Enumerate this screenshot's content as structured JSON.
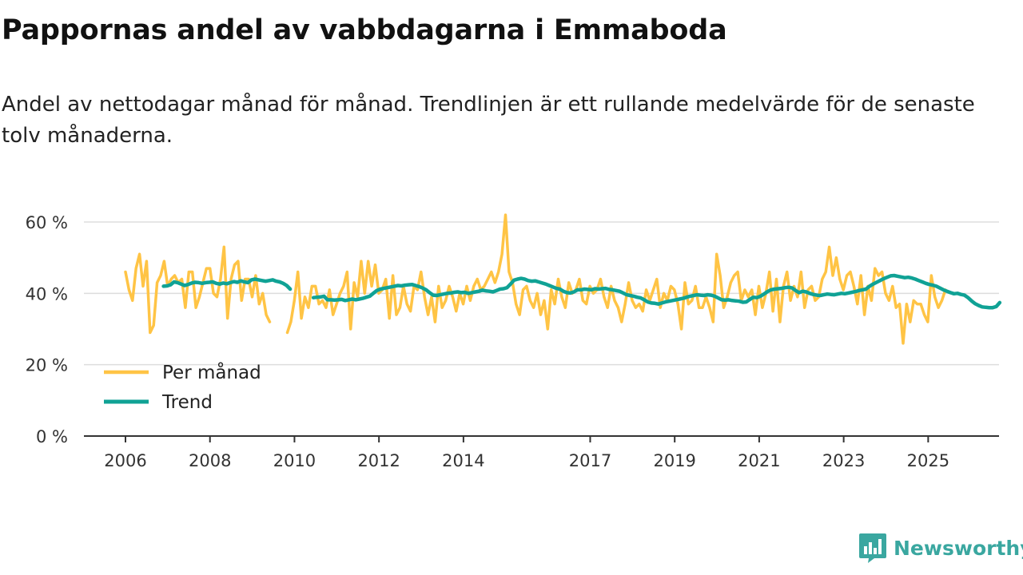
{
  "title": "Pappornas andel av vabbdagarna i Emmaboda",
  "subtitle": "Andel av nettodagar månad för månad. Trendlinjen är ett rullande medelvärde för de senaste tolv månaderna.",
  "brand": {
    "name": "Newsworthy",
    "color": "#3aa7a0"
  },
  "colors": {
    "monthly": "#ffc445",
    "trend": "#10a295",
    "grid": "#dddddd",
    "axis": "#333333"
  },
  "chart_data": {
    "type": "line",
    "title": "Pappornas andel av vabbdagarna i Emmaboda",
    "xlabel": "",
    "ylabel": "",
    "ylim": [
      0,
      60
    ],
    "xlim": [
      2006,
      2025.75
    ],
    "yticks": [
      0,
      20,
      40,
      60
    ],
    "ytick_labels": [
      "0 %",
      "20 %",
      "40 %",
      "60 %"
    ],
    "xticks": [
      2006,
      2008,
      2010,
      2012,
      2014,
      2017,
      2019,
      2021,
      2023,
      2025
    ],
    "xtick_labels": [
      "2006",
      "2008",
      "2010",
      "2012",
      "2014",
      "2017",
      "2019",
      "2021",
      "2023",
      "2025"
    ],
    "grid": true,
    "legend_position": "bottom-left",
    "series": [
      {
        "name": "Per månad",
        "color": "#ffc445",
        "segments": [
          {
            "start": 2006.0,
            "step": 0.0833,
            "values": [
              46,
              41,
              38,
              47,
              51,
              42,
              49,
              29,
              31,
              43,
              45,
              49,
              42,
              44,
              45,
              43,
              44,
              36,
              46,
              46,
              36,
              39,
              43,
              47,
              47,
              40,
              39,
              44,
              53,
              33,
              44,
              48,
              49,
              38,
              44,
              44,
              39,
              45,
              37,
              40,
              34,
              32
            ]
          },
          {
            "start": 2009.83,
            "step": 0.0833,
            "values": [
              29,
              32,
              38,
              46,
              33,
              39,
              36,
              42,
              42,
              37,
              38,
              36,
              41,
              34,
              37,
              40,
              42,
              46,
              30,
              43,
              39,
              49,
              40,
              49,
              42,
              48,
              40,
              41,
              44,
              33,
              45,
              34,
              36,
              42,
              37,
              35,
              42,
              41,
              46,
              39,
              34,
              39,
              32,
              42,
              36,
              38,
              42,
              39,
              35,
              40,
              37,
              42,
              38,
              42,
              44,
              41,
              42,
              44,
              46,
              43,
              46,
              51,
              62,
              46,
              43,
              37,
              34,
              41,
              42,
              38,
              36,
              40,
              34,
              38,
              30,
              41,
              37,
              44,
              39,
              36,
              43,
              40,
              41,
              44,
              38,
              37,
              42,
              40,
              41,
              44,
              39,
              36,
              42,
              38,
              36,
              32,
              37,
              43,
              38,
              36,
              37,
              35,
              41,
              38,
              41,
              44,
              36,
              40,
              38,
              42,
              41,
              37,
              30,
              43,
              37,
              38,
              42,
              36,
              36,
              39,
              36,
              32,
              51,
              45,
              36,
              39,
              43,
              45,
              46,
              38,
              41,
              39,
              41,
              34,
              42,
              36,
              40,
              46,
              35,
              44,
              32,
              42,
              46,
              38,
              42,
              39,
              46,
              36,
              41,
              42,
              38,
              39,
              44,
              46,
              53,
              45,
              50,
              44,
              41,
              45,
              46,
              42,
              37,
              45,
              34,
              42,
              38,
              47,
              45,
              46,
              40,
              38,
              42,
              36,
              37,
              26,
              37,
              32,
              38,
              37,
              37,
              34,
              32,
              45,
              39,
              36,
              38,
              41
            ]
          }
        ]
      },
      {
        "name": "Trend",
        "color": "#10a295",
        "segments": [
          {
            "start": 2006.9,
            "step": 0.0833,
            "values": [
              42.0,
              42.1,
              42.4,
              43.2,
              43.0,
              42.6,
              42.2,
              42.5,
              42.9,
              43.1,
              43.0,
              42.8,
              43.0,
              43.1,
              43.2,
              42.8,
              42.6,
              42.9,
              42.7,
              43.0,
              43.3,
              43.1,
              43.5,
              43.2,
              43.0,
              43.8,
              44.0,
              43.8,
              43.6,
              43.4,
              43.6,
              43.8,
              43.4,
              43.2,
              42.8,
              42.2,
              41.2
            ]
          },
          {
            "start": 2010.45,
            "step": 0.0833,
            "values": [
              38.8,
              38.9,
              39.0,
              39.2,
              38.2,
              38.2,
              38.1,
              38.2,
              38.3,
              38.0,
              38.2,
              38.4,
              38.2,
              38.4,
              38.6,
              38.9,
              39.2,
              40.0,
              40.8,
              41.2,
              41.4,
              41.6,
              41.8,
              42.0,
              42.2,
              42.1,
              42.3,
              42.4,
              42.5,
              42.2,
              41.9,
              41.5,
              41.0,
              40.2,
              39.5,
              39.4,
              39.6,
              39.8,
              40.0,
              40.1,
              40.3,
              40.4,
              40.2,
              40.3,
              40.0,
              40.2,
              40.4,
              40.6,
              40.9,
              40.7,
              40.6,
              40.4,
              40.8,
              41.2,
              41.3,
              41.6,
              42.6,
              43.7,
              44.0,
              44.2,
              44.0,
              43.6,
              43.4,
              43.5,
              43.2,
              42.9,
              42.6,
              42.2,
              41.8,
              41.4,
              41.2,
              40.6,
              40.2,
              40.1,
              40.4,
              41.0,
              41.0,
              41.2,
              41.1,
              41.0,
              41.3,
              41.2,
              41.3,
              41.4,
              41.1,
              41.0,
              40.8,
              40.6,
              40.1,
              39.6,
              39.4,
              39.2,
              38.9,
              38.7,
              38.2,
              37.6,
              37.3,
              37.2,
              37.0,
              37.3,
              37.6,
              37.8,
              38.0,
              38.2,
              38.4,
              38.6,
              38.9,
              39.2,
              39.4,
              39.6,
              39.5,
              39.4,
              39.6,
              39.5,
              39.2,
              38.7,
              38.2,
              38.1,
              38.2,
              38.0,
              37.9,
              37.8,
              37.5,
              37.6,
              38.3,
              38.9,
              38.8,
              39.2,
              39.8,
              40.5,
              41.0,
              41.2,
              41.3,
              41.4,
              41.6,
              41.7,
              41.5,
              40.8,
              40.2,
              40.6,
              40.4,
              40.0,
              39.7,
              39.5,
              39.4,
              39.6,
              39.8,
              39.7,
              39.6,
              39.8,
              40.0,
              39.9,
              40.1,
              40.3,
              40.5,
              40.8,
              41.0,
              41.2,
              42.0,
              42.6,
              43.1,
              43.6,
              44.1,
              44.5,
              44.9,
              45.0,
              44.8,
              44.6,
              44.4,
              44.5,
              44.3,
              44.0,
              43.6,
              43.2,
              42.8,
              42.5,
              42.3,
              42.0,
              41.5,
              41.0,
              40.6,
              40.2,
              39.9,
              40.0,
              39.7,
              39.5,
              38.8,
              37.9,
              37.1,
              36.6,
              36.2,
              36.1,
              36.0,
              36.0,
              36.3,
              37.4
            ]
          }
        ]
      }
    ]
  }
}
